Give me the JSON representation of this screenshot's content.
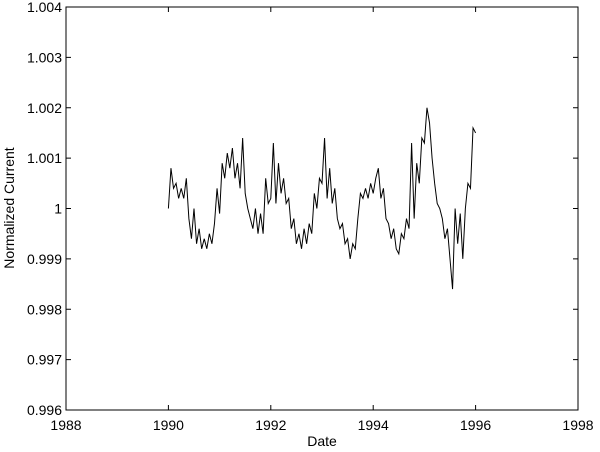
{
  "chart_data": {
    "type": "line",
    "xlabel": "Date",
    "ylabel": "Normalized Current",
    "xlim": [
      1988,
      1998
    ],
    "xticks": [
      1988,
      1990,
      1992,
      1994,
      1996,
      1998
    ],
    "ylim": [
      0.996,
      1.004
    ],
    "yticks": [
      0.996,
      0.997,
      0.998,
      0.999,
      1,
      1.001,
      1.002,
      1.003,
      1.004
    ],
    "grid": false,
    "x": [
      1990.0,
      1990.05,
      1990.1,
      1990.15,
      1990.2,
      1990.25,
      1990.3,
      1990.35,
      1990.4,
      1990.45,
      1990.5,
      1990.55,
      1990.6,
      1990.65,
      1990.7,
      1990.75,
      1990.8,
      1990.85,
      1990.9,
      1990.95,
      1991.0,
      1991.05,
      1991.1,
      1991.15,
      1991.2,
      1991.25,
      1991.3,
      1991.35,
      1991.4,
      1991.45,
      1991.5,
      1991.55,
      1991.6,
      1991.65,
      1991.7,
      1991.75,
      1991.8,
      1991.85,
      1991.9,
      1991.95,
      1992.0,
      1992.05,
      1992.1,
      1992.15,
      1992.2,
      1992.25,
      1992.3,
      1992.35,
      1992.4,
      1992.45,
      1992.5,
      1992.55,
      1992.6,
      1992.65,
      1992.7,
      1992.75,
      1992.8,
      1992.85,
      1992.9,
      1992.95,
      1993.0,
      1993.05,
      1993.1,
      1993.15,
      1993.2,
      1993.25,
      1993.3,
      1993.35,
      1993.4,
      1993.45,
      1993.5,
      1993.55,
      1993.6,
      1993.65,
      1993.7,
      1993.75,
      1993.8,
      1993.85,
      1993.9,
      1993.95,
      1994.0,
      1994.05,
      1994.1,
      1994.15,
      1994.2,
      1994.25,
      1994.3,
      1994.35,
      1994.4,
      1994.45,
      1994.5,
      1994.55,
      1994.6,
      1994.65,
      1994.7,
      1994.75,
      1994.8,
      1994.85,
      1994.9,
      1994.95,
      1995.0,
      1995.05,
      1995.1,
      1995.15,
      1995.2,
      1995.25,
      1995.3,
      1995.35,
      1995.4,
      1995.45,
      1995.5,
      1995.55,
      1995.6,
      1995.65,
      1995.7,
      1995.75,
      1995.8,
      1995.85,
      1995.9,
      1995.95,
      1996.0
    ],
    "series": [
      {
        "color": "#000000",
        "values": [
          1.0,
          1.0008,
          1.0004,
          1.0005,
          1.0002,
          1.0004,
          1.0002,
          1.0006,
          0.9998,
          0.9994,
          1.0,
          0.9993,
          0.9996,
          0.9992,
          0.9994,
          0.9992,
          0.9995,
          0.9993,
          0.9997,
          1.0004,
          0.9999,
          1.0009,
          1.0006,
          1.0011,
          1.0008,
          1.0012,
          1.0006,
          1.0009,
          1.0004,
          1.0014,
          1.0003,
          1.0,
          0.9998,
          0.9996,
          1.0,
          0.9995,
          0.9999,
          0.9995,
          1.0006,
          1.0001,
          1.0002,
          1.0013,
          1.0001,
          1.0009,
          1.0003,
          1.0006,
          1.0001,
          1.0002,
          0.9996,
          0.9998,
          0.9993,
          0.9995,
          0.9992,
          0.9996,
          0.9993,
          0.9997,
          0.9995,
          1.0003,
          1.0,
          1.0006,
          1.0005,
          1.0014,
          1.0002,
          1.0008,
          1.0001,
          1.0004,
          0.9998,
          0.9996,
          0.9997,
          0.9993,
          0.9994,
          0.999,
          0.9993,
          0.9992,
          0.9998,
          1.0003,
          1.0002,
          1.0004,
          1.0002,
          1.0005,
          1.0003,
          1.0006,
          1.0008,
          1.0002,
          1.0004,
          0.9998,
          0.9997,
          0.9994,
          0.9996,
          0.9992,
          0.9991,
          0.9995,
          0.9994,
          0.9998,
          0.9996,
          1.0013,
          0.9998,
          1.0009,
          1.0005,
          1.0014,
          1.0013,
          1.002,
          1.0017,
          1.001,
          1.0005,
          1.0001,
          1.0,
          0.9998,
          0.9994,
          0.9996,
          0.999,
          0.9984,
          1.0,
          0.9993,
          0.9999,
          0.999,
          1.0,
          1.0005,
          1.0004,
          1.0016,
          1.0015
        ]
      }
    ]
  }
}
